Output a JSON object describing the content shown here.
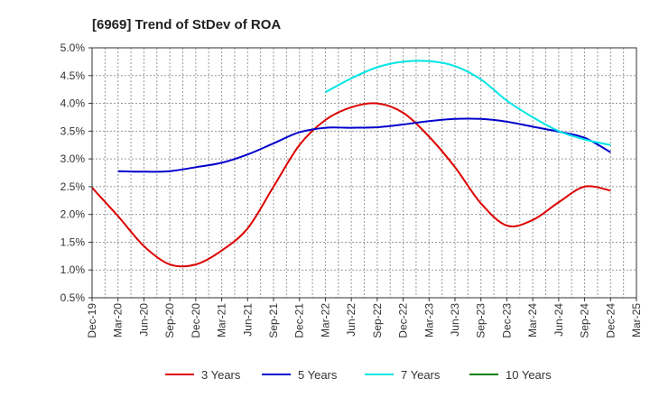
{
  "chart_data": {
    "type": "line",
    "title": "[6969]  Trend of StDev of ROA",
    "xlabel": "",
    "ylabel": "",
    "categories": [
      "Dec-19",
      "Mar-20",
      "Jun-20",
      "Sep-20",
      "Dec-20",
      "Mar-21",
      "Jun-21",
      "Sep-21",
      "Dec-21",
      "Mar-22",
      "Jun-22",
      "Sep-22",
      "Dec-22",
      "Mar-23",
      "Jun-23",
      "Sep-23",
      "Dec-23",
      "Mar-24",
      "Jun-24",
      "Sep-24",
      "Dec-24",
      "Mar-25"
    ],
    "y_ticks": [
      "0.5%",
      "1.0%",
      "1.5%",
      "2.0%",
      "2.5%",
      "3.0%",
      "3.5%",
      "4.0%",
      "4.5%",
      "5.0%"
    ],
    "ylim": [
      0.5,
      5.0
    ],
    "grid": true,
    "legend_position": "bottom",
    "series": [
      {
        "name": "3 Years",
        "color": "#dd0000",
        "values": [
          2.48,
          1.97,
          1.43,
          1.1,
          1.1,
          1.35,
          1.75,
          2.5,
          3.25,
          3.7,
          3.93,
          4.0,
          3.83,
          3.4,
          2.85,
          2.2,
          1.8,
          1.9,
          2.22,
          2.5,
          2.43,
          null
        ]
      },
      {
        "name": "5 Years",
        "color": "#0000cc",
        "values": [
          null,
          2.78,
          2.77,
          2.78,
          2.85,
          2.93,
          3.08,
          3.28,
          3.48,
          3.56,
          3.56,
          3.57,
          3.62,
          3.68,
          3.72,
          3.72,
          3.67,
          3.58,
          3.49,
          3.38,
          3.12,
          null
        ]
      },
      {
        "name": "7 Years",
        "color": "#00e5e5",
        "values": [
          null,
          null,
          null,
          null,
          null,
          null,
          null,
          null,
          null,
          4.2,
          4.45,
          4.65,
          4.75,
          4.76,
          4.67,
          4.43,
          4.05,
          3.75,
          3.5,
          3.35,
          3.25,
          null
        ]
      },
      {
        "name": "10 Years",
        "color": "#008000",
        "values": [
          null,
          null,
          null,
          null,
          null,
          null,
          null,
          null,
          null,
          null,
          null,
          null,
          null,
          null,
          null,
          null,
          null,
          null,
          null,
          null,
          null,
          null
        ]
      }
    ]
  }
}
